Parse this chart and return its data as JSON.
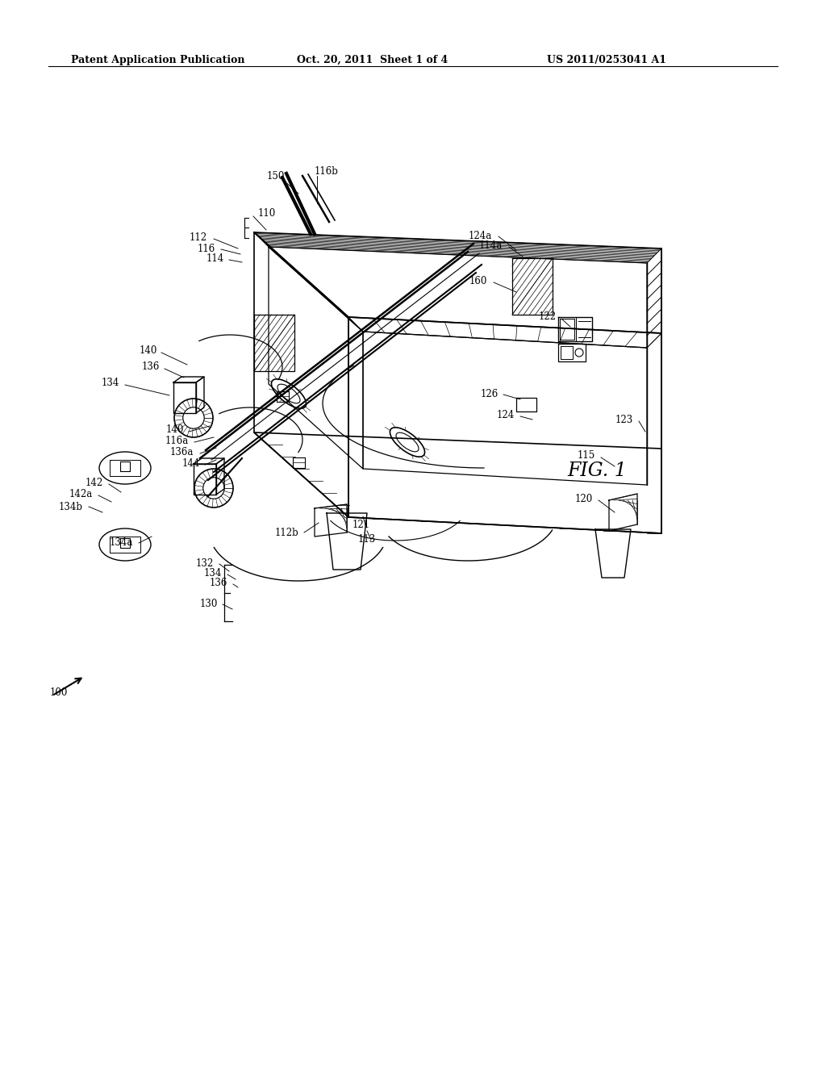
{
  "background_color": "#ffffff",
  "header_left": "Patent Application Publication",
  "header_center": "Oct. 20, 2011  Sheet 1 of 4",
  "header_right": "US 2011/0253041 A1",
  "figure_label": "FIG. 1",
  "header_fontsize": 9,
  "label_fontsize": 8.5
}
